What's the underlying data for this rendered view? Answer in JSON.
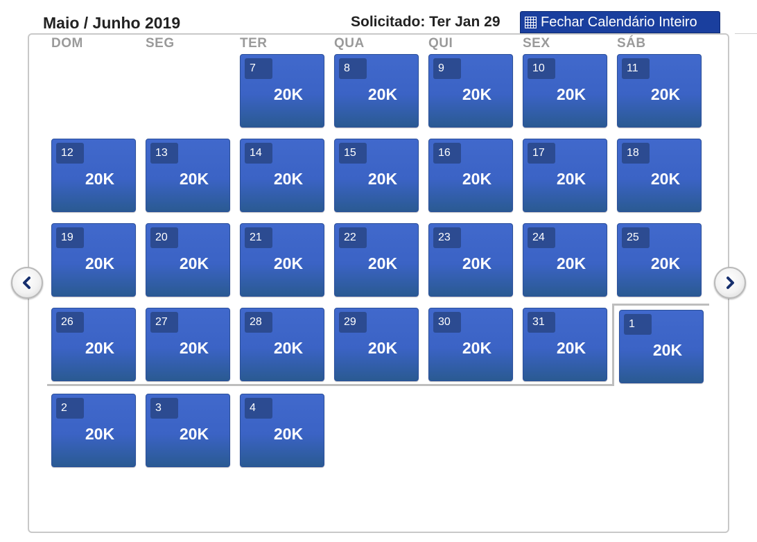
{
  "header": {
    "title": "Maio / Junho 2019",
    "requested": "Solicitado: Ter Jan 29",
    "close_button_label": "Fechar Calendário Inteiro"
  },
  "weekdays": [
    "DOM",
    "SEG",
    "TER",
    "QUA",
    "QUI",
    "SEX",
    "SÁB"
  ],
  "days": [
    {
      "day": "7",
      "price": "20K"
    },
    {
      "day": "8",
      "price": "20K"
    },
    {
      "day": "9",
      "price": "20K"
    },
    {
      "day": "10",
      "price": "20K"
    },
    {
      "day": "11",
      "price": "20K"
    },
    {
      "day": "12",
      "price": "20K"
    },
    {
      "day": "13",
      "price": "20K"
    },
    {
      "day": "14",
      "price": "20K"
    },
    {
      "day": "15",
      "price": "20K"
    },
    {
      "day": "16",
      "price": "20K"
    },
    {
      "day": "17",
      "price": "20K"
    },
    {
      "day": "18",
      "price": "20K"
    },
    {
      "day": "19",
      "price": "20K"
    },
    {
      "day": "20",
      "price": "20K"
    },
    {
      "day": "21",
      "price": "20K"
    },
    {
      "day": "22",
      "price": "20K"
    },
    {
      "day": "23",
      "price": "20K"
    },
    {
      "day": "24",
      "price": "20K"
    },
    {
      "day": "25",
      "price": "20K"
    },
    {
      "day": "26",
      "price": "20K"
    },
    {
      "day": "27",
      "price": "20K"
    },
    {
      "day": "28",
      "price": "20K"
    },
    {
      "day": "29",
      "price": "20K"
    },
    {
      "day": "30",
      "price": "20K"
    },
    {
      "day": "31",
      "price": "20K"
    },
    {
      "day": "1",
      "price": "20K"
    },
    {
      "day": "2",
      "price": "20K"
    },
    {
      "day": "3",
      "price": "20K"
    },
    {
      "day": "4",
      "price": "20K"
    }
  ],
  "icons": {
    "close_button": "grid-icon",
    "prev": "chevron-left-icon",
    "next": "chevron-right-icon"
  },
  "colors": {
    "day_cell": "#3b63c5",
    "day_number_badge": "#2c4b91",
    "close_button": "#1a3f9e",
    "weekday_label": "#9a9a9a"
  }
}
